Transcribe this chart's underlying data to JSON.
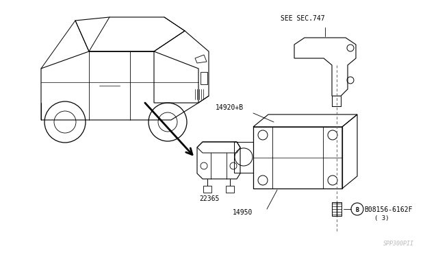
{
  "bg_color": "#ffffff",
  "line_color": "#000000",
  "dashed_color": "#888888",
  "fig_width": 6.4,
  "fig_height": 3.72,
  "dpi": 100,
  "labels": {
    "see_sec": "SEE SEC.747",
    "part1": "14920+B",
    "part2": "14950",
    "part3": "22365",
    "bolt_label": "B08156-6162F",
    "bolt_qty": "( 3)",
    "watermark": "SPP300PII",
    "b_circle": "B"
  }
}
